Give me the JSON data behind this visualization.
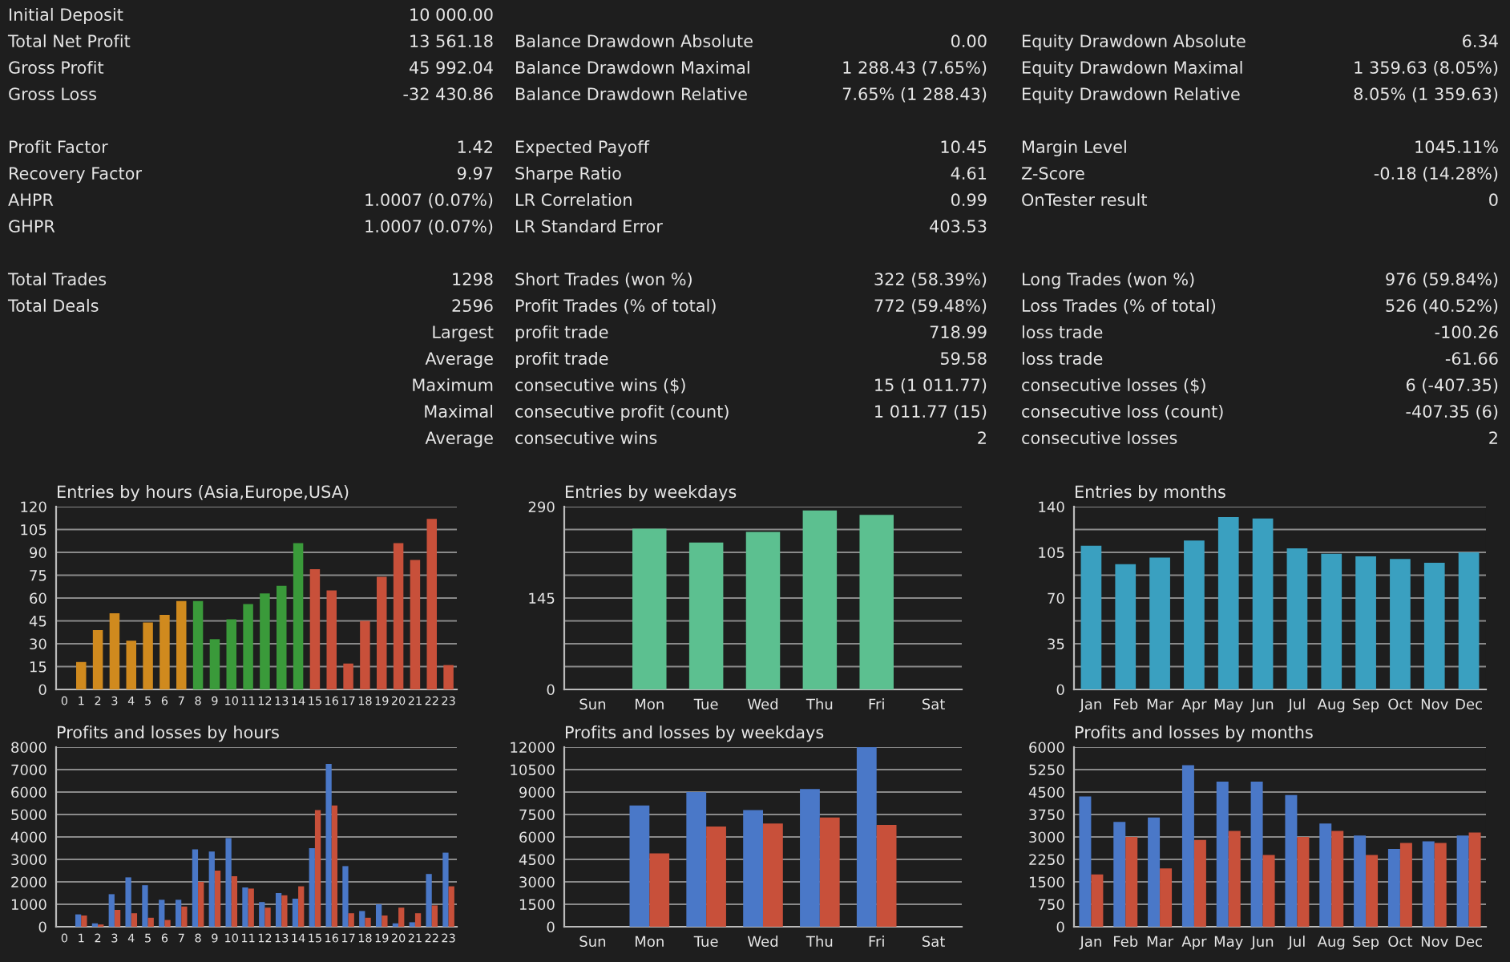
{
  "chart_data": [
    {
      "type": "other",
      "annotations": [
        "Initial Deposit",
        "10 000.00",
        "Total Net Profit",
        "13 561.18",
        "Balance Drawdown Absolute",
        "0.00",
        "Equity Drawdown Absolute",
        "6.34",
        "Gross Profit",
        "45 992.04",
        "Balance Drawdown Maximal",
        "1 288.43 (7.65%)",
        "Equity Drawdown Maximal",
        "1 359.63 (8.05%)",
        "Gross Loss",
        "-32 430.86",
        "Balance Drawdown Relative",
        "7.65% (1 288.43)",
        "Equity Drawdown Relative",
        "8.05% (1 359.63)",
        "Profit Factor",
        "1.42",
        "Expected Payoff",
        "10.45",
        "Margin Level",
        "1045.11%",
        "Recovery Factor",
        "9.97",
        "Sharpe Ratio",
        "4.61",
        "Z-Score",
        "-0.18 (14.28%)",
        "AHPR",
        "1.0007 (0.07%)",
        "LR Correlation",
        "0.99",
        "OnTester result",
        "0",
        "GHPR",
        "1.0007 (0.07%)",
        "LR Standard Error",
        "403.53",
        "Total Trades",
        "1298",
        "Short Trades (won %)",
        "322 (58.39%)",
        "Long Trades (won %)",
        "976 (59.84%)",
        "Total Deals",
        "2596",
        "Profit Trades (% of total)",
        "772 (59.48%)",
        "Loss Trades (% of total)",
        "526 (40.52%)",
        "Largest",
        "profit trade",
        "718.99",
        "loss trade",
        "-100.26",
        "Average",
        "profit trade",
        "59.58",
        "loss trade",
        "-61.66",
        "Maximum",
        "consecutive wins ($)",
        "15 (1 011.77)",
        "consecutive losses ($)",
        "6 (-407.35)",
        "Maximal",
        "consecutive profit (count)",
        "1 011.77 (15)",
        "consecutive loss (count)",
        "-407.35 (6)",
        "Average",
        "consecutive wins",
        "2",
        "consecutive losses",
        "2"
      ]
    },
    {
      "type": "bar",
      "title": "Entries by hours (Asia,Europe,USA)",
      "categories": [
        "0",
        "1",
        "2",
        "3",
        "4",
        "5",
        "6",
        "7",
        "8",
        "9",
        "10",
        "11",
        "12",
        "13",
        "14",
        "15",
        "16",
        "17",
        "18",
        "19",
        "20",
        "21",
        "22",
        "23"
      ],
      "values": [
        0,
        18,
        39,
        50,
        32,
        44,
        49,
        58,
        58,
        33,
        46,
        56,
        63,
        68,
        96,
        79,
        65,
        17,
        45,
        74,
        96,
        85,
        112,
        16
      ],
      "colors": [
        "#d08a1e",
        "#d08a1e",
        "#d08a1e",
        "#d08a1e",
        "#d08a1e",
        "#d08a1e",
        "#d08a1e",
        "#d08a1e",
        "#3a9a3a",
        "#3a9a3a",
        "#3a9a3a",
        "#3a9a3a",
        "#3a9a3a",
        "#3a9a3a",
        "#3a9a3a",
        "#c8503a",
        "#c8503a",
        "#c8503a",
        "#c8503a",
        "#c8503a",
        "#c8503a",
        "#c8503a",
        "#c8503a",
        "#c8503a"
      ],
      "ylim": [
        0,
        120
      ],
      "yticks": [
        0,
        15,
        30,
        45,
        60,
        75,
        90,
        105,
        120
      ],
      "grid": "y"
    },
    {
      "type": "bar",
      "title": "Entries by weekdays",
      "categories": [
        "Sun",
        "Mon",
        "Tue",
        "Wed",
        "Thu",
        "Fri",
        "Sat"
      ],
      "values": [
        0,
        255,
        233,
        250,
        284,
        277,
        0
      ],
      "color": "#5cc090",
      "ylim": [
        0,
        290
      ],
      "yticks": [
        0,
        {
          "value": 36.25,
          "label": null
        },
        {
          "value": 72.5,
          "label": null
        },
        {
          "value": 108.75,
          "label": null
        },
        145,
        {
          "value": 181.25,
          "label": null
        },
        {
          "value": 217.5,
          "label": null
        },
        {
          "value": 253.75,
          "label": null
        },
        290
      ],
      "grid": "y"
    },
    {
      "type": "bar",
      "title": "Entries by months",
      "categories": [
        "Jan",
        "Feb",
        "Mar",
        "Apr",
        "May",
        "Jun",
        "Jul",
        "Aug",
        "Sep",
        "Oct",
        "Nov",
        "Dec"
      ],
      "values": [
        110,
        96,
        101,
        114,
        132,
        131,
        108,
        104,
        102,
        100,
        97,
        105
      ],
      "color": "#3aa0c0",
      "ylim": [
        0,
        140
      ],
      "yticks": [
        0,
        {
          "value": 17.5,
          "label": null
        },
        35,
        {
          "value": 52.5,
          "label": null
        },
        70,
        {
          "value": 87.5,
          "label": null
        },
        105,
        {
          "value": 122.5,
          "label": null
        },
        140
      ],
      "grid": "y"
    },
    {
      "type": "bar",
      "title": "Profits and losses by hours",
      "categories": [
        "0",
        "1",
        "2",
        "3",
        "4",
        "5",
        "6",
        "7",
        "8",
        "9",
        "10",
        "11",
        "12",
        "13",
        "14",
        "15",
        "16",
        "17",
        "18",
        "19",
        "20",
        "21",
        "22",
        "23"
      ],
      "series": [
        {
          "color": "#4a78c8",
          "values": [
            0,
            550,
            150,
            1450,
            2200,
            1850,
            1200,
            1200,
            3450,
            3350,
            3950,
            1750,
            1100,
            1500,
            1250,
            3500,
            7250,
            2700,
            700,
            1000,
            150,
            200,
            2350,
            3300
          ]
        },
        {
          "color": "#c8503a",
          "values": [
            0,
            500,
            100,
            750,
            600,
            400,
            300,
            900,
            2000,
            2500,
            2250,
            1700,
            850,
            1400,
            1800,
            5200,
            5400,
            600,
            400,
            500,
            850,
            600,
            950,
            1800
          ]
        }
      ],
      "ylim": [
        0,
        8000
      ],
      "yticks": [
        0,
        1000,
        2000,
        3000,
        4000,
        5000,
        6000,
        7000,
        8000
      ],
      "grid": "y"
    },
    {
      "type": "bar",
      "title": "Profits and losses by weekdays",
      "categories": [
        "Sun",
        "Mon",
        "Tue",
        "Wed",
        "Thu",
        "Fri",
        "Sat"
      ],
      "series": [
        {
          "color": "#4a78c8",
          "values": [
            0,
            8100,
            9000,
            7800,
            9200,
            12000,
            0
          ]
        },
        {
          "color": "#c8503a",
          "values": [
            0,
            4900,
            6700,
            6900,
            7300,
            6800,
            0
          ]
        }
      ],
      "ylim": [
        0,
        12000
      ],
      "yticks": [
        0,
        1500,
        3000,
        4500,
        6000,
        7500,
        9000,
        10500,
        12000
      ],
      "grid": "y"
    },
    {
      "type": "bar",
      "title": "Profits and losses by months",
      "categories": [
        "Jan",
        "Feb",
        "Mar",
        "Apr",
        "May",
        "Jun",
        "Jul",
        "Aug",
        "Sep",
        "Oct",
        "Nov",
        "Dec"
      ],
      "series": [
        {
          "color": "#4a78c8",
          "values": [
            4350,
            3500,
            3650,
            5400,
            4850,
            4850,
            4400,
            3450,
            3050,
            2600,
            2850,
            3050
          ]
        },
        {
          "color": "#c8503a",
          "values": [
            1750,
            3000,
            1950,
            2900,
            3200,
            2400,
            3000,
            3200,
            2400,
            2800,
            2800,
            3150
          ]
        }
      ],
      "ylim": [
        0,
        6000
      ],
      "yticks": [
        0,
        750,
        1500,
        2250,
        3000,
        3750,
        4500,
        5250,
        6000
      ],
      "grid": "y"
    }
  ]
}
